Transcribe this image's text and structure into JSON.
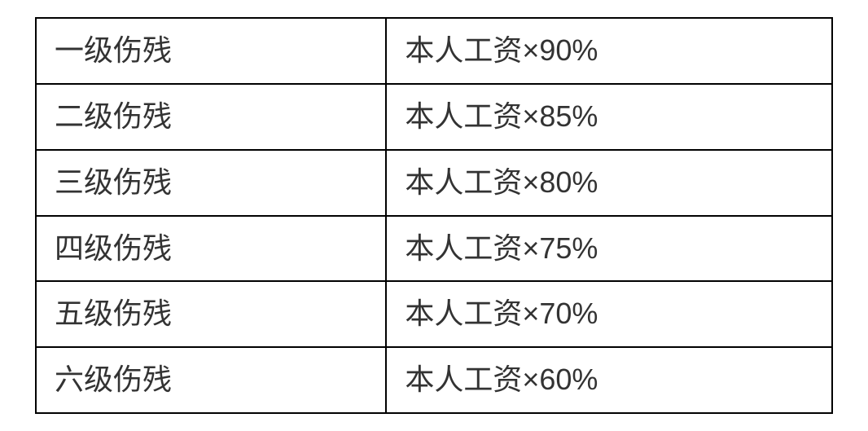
{
  "table": {
    "type": "table",
    "border_color": "#000000",
    "border_width": 2,
    "background_color": "#ffffff",
    "text_color": "#333333",
    "font_size": 36,
    "font_weight": 400,
    "cell_padding": "16px 22px",
    "columns": [
      {
        "key": "level",
        "width_pct": 44,
        "align": "left"
      },
      {
        "key": "formula",
        "width_pct": 56,
        "align": "left"
      }
    ],
    "rows": [
      {
        "level": "一级伤残",
        "formula": "本人工资×90%"
      },
      {
        "level": "二级伤残",
        "formula": "本人工资×85%"
      },
      {
        "level": "三级伤残",
        "formula": "本人工资×80%"
      },
      {
        "level": "四级伤残",
        "formula": "本人工资×75%"
      },
      {
        "level": "五级伤残",
        "formula": "本人工资×70%"
      },
      {
        "level": "六级伤残",
        "formula": "本人工资×60%"
      }
    ]
  }
}
